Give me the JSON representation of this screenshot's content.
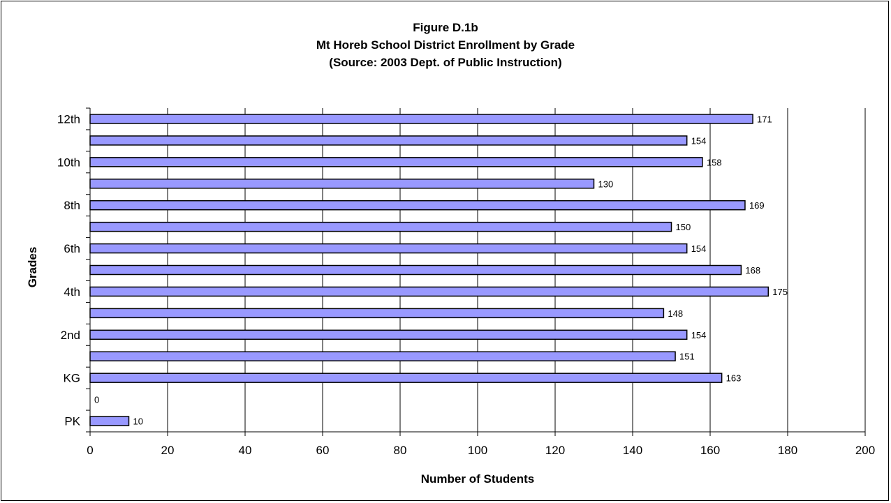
{
  "chart_data": {
    "type": "bar",
    "orientation": "horizontal",
    "title": "Figure D.1b",
    "subtitle": "Mt Horeb School District Enrollment by Grade",
    "source": "(Source:  2003 Dept. of Public Instruction)",
    "xlabel": "Number of Students",
    "ylabel": "Grades",
    "xlim": [
      0,
      200
    ],
    "x_ticks": [
      0,
      20,
      40,
      60,
      80,
      100,
      120,
      140,
      160,
      180,
      200
    ],
    "categories": [
      "PK",
      "",
      "KG",
      "",
      "2nd",
      "",
      "4th",
      "",
      "6th",
      "",
      "8th",
      "",
      "10th",
      "",
      "12th"
    ],
    "values": [
      10,
      0,
      163,
      151,
      154,
      148,
      175,
      168,
      154,
      150,
      169,
      130,
      158,
      154,
      171
    ],
    "data_labels": [
      "10",
      "0",
      "163",
      "151",
      "154",
      "148",
      "175",
      "168",
      "154",
      "150",
      "169",
      "130",
      "158",
      "154",
      "171"
    ],
    "bar_color": "#9999ff",
    "bar_border": "#000000",
    "grid": "vertical",
    "legend": "none"
  }
}
